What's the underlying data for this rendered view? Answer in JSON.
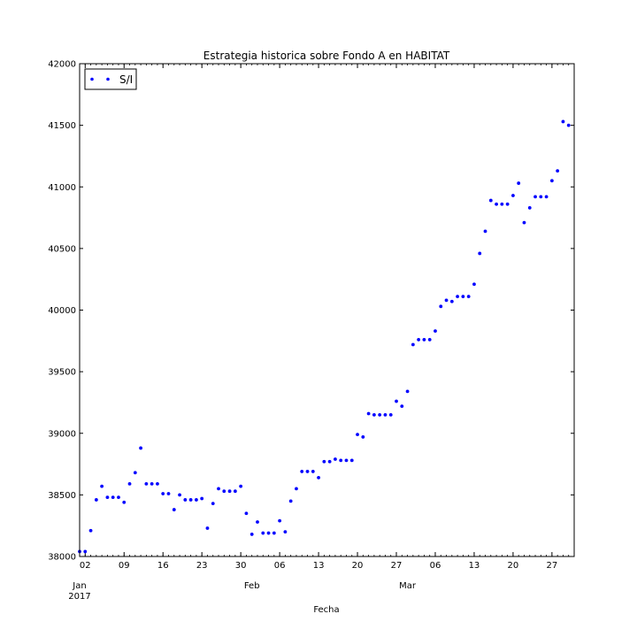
{
  "chart_data": {
    "type": "scatter",
    "title": "Estrategia historica sobre Fondo A en HABITAT",
    "xlabel": "Fecha",
    "ylabel": "",
    "xlim": [
      "2017-01-01",
      "2017-03-31"
    ],
    "ylim": [
      38000,
      42000
    ],
    "y_ticks": [
      "38000",
      "38500",
      "39000",
      "39500",
      "40000",
      "40500",
      "41000",
      "41500",
      "42000"
    ],
    "x_ticks": [
      {
        "date": "2017-01-02",
        "label": "02"
      },
      {
        "date": "2017-01-09",
        "label": "09"
      },
      {
        "date": "2017-01-16",
        "label": "16"
      },
      {
        "date": "2017-01-23",
        "label": "23"
      },
      {
        "date": "2017-01-30",
        "label": "30"
      },
      {
        "date": "2017-02-06",
        "label": "06"
      },
      {
        "date": "2017-02-13",
        "label": "13"
      },
      {
        "date": "2017-02-20",
        "label": "20"
      },
      {
        "date": "2017-02-27",
        "label": "27"
      },
      {
        "date": "2017-03-06",
        "label": "06"
      },
      {
        "date": "2017-03-13",
        "label": "13"
      },
      {
        "date": "2017-03-20",
        "label": "20"
      },
      {
        "date": "2017-03-27",
        "label": "27"
      }
    ],
    "x_month_labels": [
      {
        "date": "2017-01-01",
        "label": "Jan",
        "year": "2017"
      },
      {
        "date": "2017-02-01",
        "label": "Feb",
        "year": ""
      },
      {
        "date": "2017-03-01",
        "label": "Mar",
        "year": ""
      }
    ],
    "legend": {
      "position": "top-left"
    },
    "grid": false,
    "series": [
      {
        "name": "S/I",
        "color": "#0000ff",
        "marker": "point",
        "points": [
          [
            "2017-01-01",
            38040
          ],
          [
            "2017-01-02",
            38040
          ],
          [
            "2017-01-03",
            38210
          ],
          [
            "2017-01-04",
            38460
          ],
          [
            "2017-01-05",
            38570
          ],
          [
            "2017-01-06",
            38480
          ],
          [
            "2017-01-07",
            38480
          ],
          [
            "2017-01-08",
            38480
          ],
          [
            "2017-01-09",
            38440
          ],
          [
            "2017-01-10",
            38590
          ],
          [
            "2017-01-11",
            38680
          ],
          [
            "2017-01-12",
            38880
          ],
          [
            "2017-01-13",
            38590
          ],
          [
            "2017-01-14",
            38590
          ],
          [
            "2017-01-15",
            38590
          ],
          [
            "2017-01-16",
            38510
          ],
          [
            "2017-01-17",
            38510
          ],
          [
            "2017-01-18",
            38380
          ],
          [
            "2017-01-19",
            38500
          ],
          [
            "2017-01-20",
            38460
          ],
          [
            "2017-01-21",
            38460
          ],
          [
            "2017-01-22",
            38460
          ],
          [
            "2017-01-23",
            38470
          ],
          [
            "2017-01-24",
            38230
          ],
          [
            "2017-01-25",
            38430
          ],
          [
            "2017-01-26",
            38550
          ],
          [
            "2017-01-27",
            38530
          ],
          [
            "2017-01-28",
            38530
          ],
          [
            "2017-01-29",
            38530
          ],
          [
            "2017-01-30",
            38570
          ],
          [
            "2017-01-31",
            38350
          ],
          [
            "2017-02-01",
            38180
          ],
          [
            "2017-02-02",
            38280
          ],
          [
            "2017-02-03",
            38190
          ],
          [
            "2017-02-04",
            38190
          ],
          [
            "2017-02-05",
            38190
          ],
          [
            "2017-02-06",
            38290
          ],
          [
            "2017-02-07",
            38200
          ],
          [
            "2017-02-08",
            38450
          ],
          [
            "2017-02-09",
            38550
          ],
          [
            "2017-02-10",
            38690
          ],
          [
            "2017-02-11",
            38690
          ],
          [
            "2017-02-12",
            38690
          ],
          [
            "2017-02-13",
            38640
          ],
          [
            "2017-02-14",
            38770
          ],
          [
            "2017-02-15",
            38770
          ],
          [
            "2017-02-16",
            38790
          ],
          [
            "2017-02-17",
            38780
          ],
          [
            "2017-02-18",
            38780
          ],
          [
            "2017-02-19",
            38780
          ],
          [
            "2017-02-20",
            38990
          ],
          [
            "2017-02-21",
            38970
          ],
          [
            "2017-02-22",
            39160
          ],
          [
            "2017-02-23",
            39150
          ],
          [
            "2017-02-24",
            39150
          ],
          [
            "2017-02-25",
            39150
          ],
          [
            "2017-02-26",
            39150
          ],
          [
            "2017-02-27",
            39260
          ],
          [
            "2017-02-28",
            39220
          ],
          [
            "2017-03-01",
            39340
          ],
          [
            "2017-03-02",
            39720
          ],
          [
            "2017-03-03",
            39760
          ],
          [
            "2017-03-04",
            39760
          ],
          [
            "2017-03-05",
            39760
          ],
          [
            "2017-03-06",
            39830
          ],
          [
            "2017-03-07",
            40030
          ],
          [
            "2017-03-08",
            40080
          ],
          [
            "2017-03-09",
            40070
          ],
          [
            "2017-03-10",
            40110
          ],
          [
            "2017-03-11",
            40110
          ],
          [
            "2017-03-12",
            40110
          ],
          [
            "2017-03-13",
            40210
          ],
          [
            "2017-03-14",
            40460
          ],
          [
            "2017-03-15",
            40640
          ],
          [
            "2017-03-16",
            40890
          ],
          [
            "2017-03-17",
            40860
          ],
          [
            "2017-03-18",
            40860
          ],
          [
            "2017-03-19",
            40860
          ],
          [
            "2017-03-20",
            40930
          ],
          [
            "2017-03-21",
            41030
          ],
          [
            "2017-03-22",
            40710
          ],
          [
            "2017-03-23",
            40830
          ],
          [
            "2017-03-24",
            40920
          ],
          [
            "2017-03-25",
            40920
          ],
          [
            "2017-03-26",
            40920
          ],
          [
            "2017-03-27",
            41050
          ],
          [
            "2017-03-28",
            41130
          ],
          [
            "2017-03-29",
            41530
          ],
          [
            "2017-03-30",
            41500
          ]
        ]
      }
    ]
  }
}
